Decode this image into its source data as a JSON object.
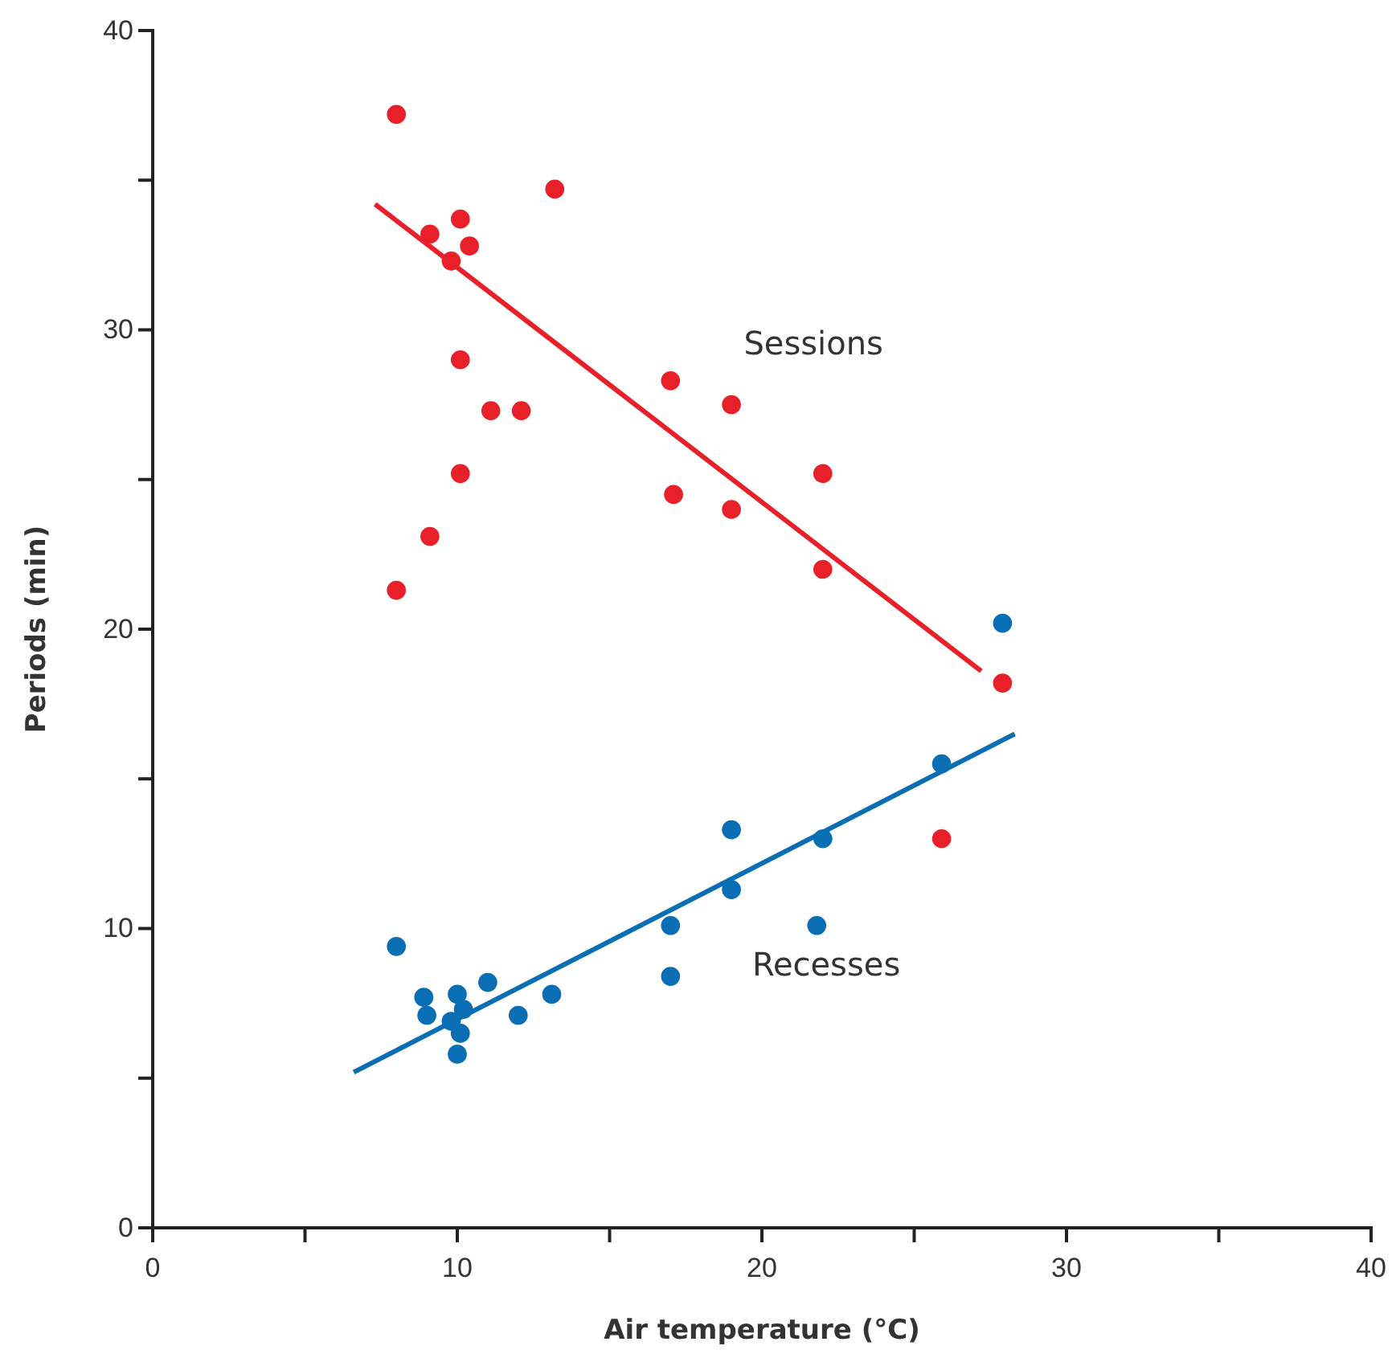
{
  "chart_data": {
    "type": "scatter",
    "xlabel": "Air temperature (°C)",
    "ylabel": "Periods (min)",
    "xlim": [
      0,
      40
    ],
    "ylim": [
      0,
      40
    ],
    "xticks": [
      0,
      {
        "value": 5,
        "label": null
      },
      10,
      {
        "value": 15,
        "label": null
      },
      20,
      {
        "value": 25,
        "label": null
      },
      30,
      {
        "value": 35,
        "label": null
      },
      40
    ],
    "yticks": [
      0,
      {
        "value": 5,
        "label": null
      },
      10,
      {
        "value": 15,
        "label": null
      },
      20,
      {
        "value": 25,
        "label": null
      },
      30,
      {
        "value": 35,
        "label": null
      },
      40
    ],
    "grid": false,
    "legend": false,
    "marker": "circle",
    "series": [
      {
        "name": "Sessions",
        "color": "#e8202a",
        "x": [
          8,
          9.1,
          10.1,
          10.4,
          9.8,
          13.2,
          10.1,
          11.1,
          12.1,
          10.1,
          9.1,
          8,
          17,
          19,
          17.1,
          19,
          22,
          22,
          27.9,
          25.9
        ],
        "values": [
          37.2,
          33.2,
          33.7,
          32.8,
          32.3,
          34.7,
          29,
          27.3,
          27.3,
          25.2,
          23.1,
          21.3,
          28.3,
          27.5,
          24.5,
          24,
          25.2,
          22,
          18.2,
          13
        ]
      },
      {
        "name": "Recesses",
        "color": "#0a6eb4",
        "x": [
          27.9,
          25.9,
          19,
          22,
          19,
          17,
          21.8,
          17,
          8,
          8.9,
          9,
          10,
          11,
          9.8,
          10.2,
          10.1,
          10,
          12,
          13.1
        ],
        "values": [
          20.2,
          15.5,
          13.3,
          13,
          11.3,
          10.1,
          10.1,
          8.4,
          9.4,
          7.7,
          7.1,
          7.8,
          8.2,
          6.9,
          7.3,
          6.5,
          5.8,
          7.1,
          7.8
        ]
      },
      {
        "type": "line",
        "marker": "none",
        "color": "#e8202a",
        "x": [
          7.3,
          27.2
        ],
        "values": [
          34.2,
          18.6
        ]
      },
      {
        "type": "line",
        "marker": "none",
        "color": "#0a6eb4",
        "x": [
          6.6,
          28.3
        ],
        "values": [
          5.2,
          16.5
        ]
      }
    ]
  }
}
